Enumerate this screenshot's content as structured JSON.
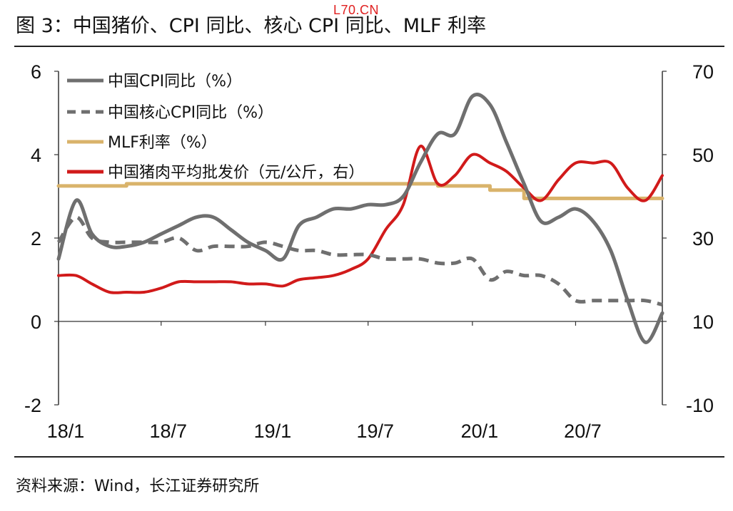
{
  "watermark": "L70.CN",
  "title": "图  3：中国猪价、CPI 同比、核心 CPI 同比、MLF 利率",
  "source": "资料来源：Wind，长江证券研究所",
  "chart_data": {
    "type": "line",
    "x_ticks": [
      "18/1",
      "18/7",
      "19/1",
      "19/7",
      "20/1",
      "20/7"
    ],
    "x_range": [
      "2018-01",
      "2020-12"
    ],
    "left_axis": {
      "ylim": [
        -2,
        6
      ],
      "ticks": [
        "-2",
        "0",
        "2",
        "4",
        "6"
      ]
    },
    "right_axis": {
      "ylim": [
        -10,
        70
      ],
      "ticks": [
        "-10",
        "10",
        "30",
        "50",
        "70"
      ]
    },
    "legend_placement": "top-left",
    "grid": false,
    "series": [
      {
        "name": "中国CPI同比（%）",
        "axis": "left",
        "style": "solid",
        "color": "#6f6f6f",
        "x": [
          "2018-01",
          "2018-02",
          "2018-03",
          "2018-04",
          "2018-05",
          "2018-06",
          "2018-07",
          "2018-08",
          "2018-09",
          "2018-10",
          "2018-11",
          "2018-12",
          "2019-01",
          "2019-02",
          "2019-03",
          "2019-04",
          "2019-05",
          "2019-06",
          "2019-07",
          "2019-08",
          "2019-09",
          "2019-10",
          "2019-11",
          "2019-12",
          "2020-01",
          "2020-02",
          "2020-03",
          "2020-04",
          "2020-05",
          "2020-06",
          "2020-07",
          "2020-08",
          "2020-09",
          "2020-10",
          "2020-11",
          "2020-12"
        ],
        "values": [
          1.5,
          2.9,
          2.1,
          1.8,
          1.8,
          1.9,
          2.1,
          2.3,
          2.5,
          2.5,
          2.2,
          1.9,
          1.7,
          1.5,
          2.3,
          2.5,
          2.7,
          2.7,
          2.8,
          2.8,
          3.0,
          3.8,
          4.5,
          4.5,
          5.4,
          5.2,
          4.3,
          3.3,
          2.4,
          2.5,
          2.7,
          2.4,
          1.7,
          0.5,
          -0.5,
          0.2
        ]
      },
      {
        "name": "中国核心CPI同比（%）",
        "axis": "left",
        "style": "dashed",
        "color": "#6f6f6f",
        "x": [
          "2018-01",
          "2018-02",
          "2018-03",
          "2018-04",
          "2018-05",
          "2018-06",
          "2018-07",
          "2018-08",
          "2018-09",
          "2018-10",
          "2018-11",
          "2018-12",
          "2019-01",
          "2019-02",
          "2019-03",
          "2019-04",
          "2019-05",
          "2019-06",
          "2019-07",
          "2019-08",
          "2019-09",
          "2019-10",
          "2019-11",
          "2019-12",
          "2020-01",
          "2020-02",
          "2020-03",
          "2020-04",
          "2020-05",
          "2020-06",
          "2020-07",
          "2020-08",
          "2020-09",
          "2020-10",
          "2020-11",
          "2020-12"
        ],
        "values": [
          1.9,
          2.5,
          2.0,
          1.9,
          1.9,
          1.9,
          1.9,
          2.0,
          1.7,
          1.8,
          1.8,
          1.8,
          1.9,
          1.8,
          1.7,
          1.7,
          1.6,
          1.6,
          1.6,
          1.5,
          1.5,
          1.5,
          1.4,
          1.4,
          1.5,
          1.0,
          1.2,
          1.1,
          1.1,
          0.9,
          0.5,
          0.5,
          0.5,
          0.5,
          0.5,
          0.4
        ]
      },
      {
        "name": "MLF利率（%）",
        "axis": "left",
        "style": "solid",
        "color": "#d9b36b",
        "x": [
          "2018-01",
          "2018-04",
          "2018-05",
          "2019-06",
          "2019-10",
          "2019-11",
          "2020-01",
          "2020-02",
          "2020-03",
          "2020-04",
          "2020-12"
        ],
        "values": [
          3.25,
          3.25,
          3.3,
          3.3,
          3.3,
          3.25,
          3.25,
          3.15,
          3.15,
          2.95,
          2.95
        ]
      },
      {
        "name": "中国猪肉平均批发价（元/公斤，右）",
        "axis": "right",
        "style": "solid",
        "color": "#d11a1a",
        "x": [
          "2018-01",
          "2018-02",
          "2018-03",
          "2018-04",
          "2018-05",
          "2018-06",
          "2018-07",
          "2018-08",
          "2018-09",
          "2018-10",
          "2018-11",
          "2018-12",
          "2019-01",
          "2019-02",
          "2019-03",
          "2019-04",
          "2019-05",
          "2019-06",
          "2019-07",
          "2019-08",
          "2019-09",
          "2019-10",
          "2019-11",
          "2019-12",
          "2020-01",
          "2020-02",
          "2020-03",
          "2020-04",
          "2020-05",
          "2020-06",
          "2020-07",
          "2020-08",
          "2020-09",
          "2020-10",
          "2020-11",
          "2020-12"
        ],
        "values": [
          21,
          21,
          19,
          17,
          17,
          17,
          18,
          19.5,
          19.5,
          19.5,
          19.5,
          19,
          19,
          18.5,
          20,
          20.5,
          21,
          22.5,
          25,
          32,
          38,
          52,
          43,
          45,
          50,
          48,
          46,
          42,
          39,
          44,
          48,
          48,
          48,
          42,
          39,
          45
        ]
      }
    ]
  }
}
